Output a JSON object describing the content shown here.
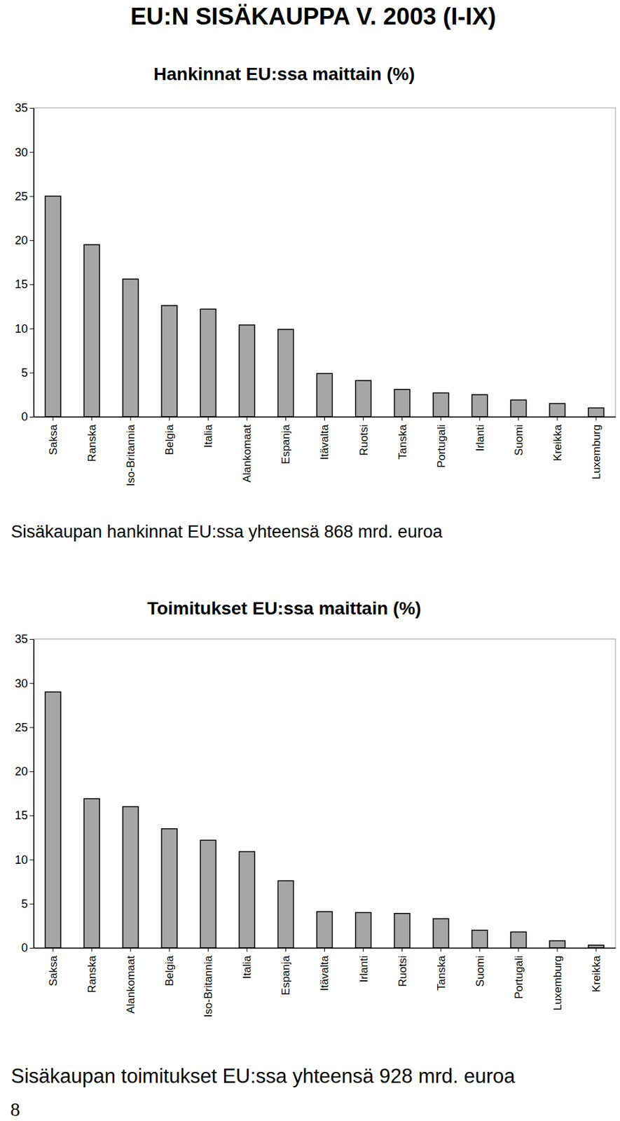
{
  "page_title": "EU:N SISÄKAUPPA V. 2003 (I-IX)",
  "page_number": 8,
  "chart_data": [
    {
      "type": "bar",
      "title": "Hankinnat EU:ssa maittain (%)",
      "annotation": "Sisäkaupan hankinnat EU:ssa yhteensä 868 mrd. euroa",
      "categories": [
        "Saksa",
        "Ranska",
        "Iso-Britannia",
        "Belgia",
        "Italia",
        "Alankomaat",
        "Espanja",
        "Itävalta",
        "Ruotsi",
        "Tanska",
        "Portugali",
        "Irlanti",
        "Suomi",
        "Kreikka",
        "Luxemburg"
      ],
      "values": [
        25,
        19.5,
        15.6,
        12.6,
        12.2,
        10.4,
        9.9,
        4.9,
        4.1,
        3.1,
        2.7,
        2.5,
        1.9,
        1.5,
        1.0
      ],
      "color": "#a6a6a6",
      "ylim": [
        0,
        35
      ],
      "yticks": [
        0,
        5,
        10,
        15,
        20,
        25,
        30,
        35
      ],
      "grid": false
    },
    {
      "type": "bar",
      "title": "Toimitukset EU:ssa maittain (%)",
      "annotation": "Sisäkaupan toimitukset EU:ssa yhteensä 928 mrd. euroa",
      "categories": [
        "Saksa",
        "Ranska",
        "Alankomaat",
        "Belgia",
        "Iso-Britannia",
        "Italia",
        "Espanja",
        "Itävalta",
        "Irlanti",
        "Ruotsi",
        "Tanska",
        "Suomi",
        "Portugali",
        "Luxemburg",
        "Kreikka"
      ],
      "values": [
        29.0,
        16.9,
        16.0,
        13.5,
        12.2,
        10.9,
        7.6,
        4.1,
        4.0,
        3.9,
        3.3,
        2.0,
        1.8,
        0.8,
        0.3
      ],
      "color": "#a6a6a6",
      "ylim": [
        0,
        35
      ],
      "yticks": [
        0,
        5,
        10,
        15,
        20,
        25,
        30,
        35
      ],
      "grid": false
    }
  ]
}
